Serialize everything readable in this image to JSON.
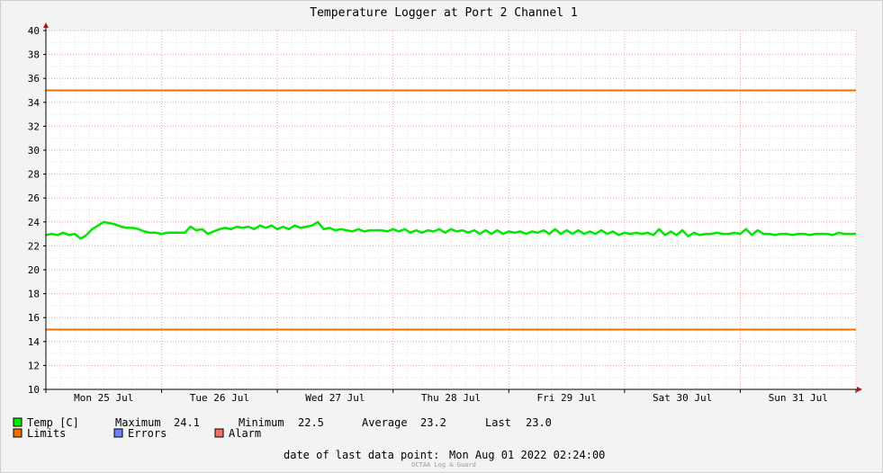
{
  "chart_data": {
    "type": "line",
    "title": "Temperature Logger at Port 2 Channel 1",
    "ylim": [
      10,
      40
    ],
    "y_ticks": [
      10,
      12,
      14,
      16,
      18,
      20,
      22,
      24,
      26,
      28,
      30,
      32,
      34,
      36,
      38,
      40
    ],
    "x_range_days": [
      0,
      7
    ],
    "x_labels": [
      {
        "day": 0.5,
        "label": "Mon 25 Jul"
      },
      {
        "day": 1.5,
        "label": "Tue 26 Jul"
      },
      {
        "day": 2.5,
        "label": "Wed 27 Jul"
      },
      {
        "day": 3.5,
        "label": "Thu 28 Jul"
      },
      {
        "day": 4.5,
        "label": "Fri 29 Jul"
      },
      {
        "day": 5.5,
        "label": "Sat 30 Jul"
      },
      {
        "day": 6.5,
        "label": "Sun 31 Jul"
      }
    ],
    "grid": true,
    "limits": [
      35,
      15
    ],
    "series": [
      {
        "name": "Temp [C]",
        "color": "#00e800",
        "x": [
          0.0,
          0.05,
          0.1,
          0.15,
          0.2,
          0.25,
          0.3,
          0.35,
          0.4,
          0.45,
          0.5,
          0.55,
          0.6,
          0.65,
          0.7,
          0.75,
          0.8,
          0.85,
          0.9,
          0.95,
          1.0,
          1.05,
          1.1,
          1.15,
          1.2,
          1.25,
          1.3,
          1.35,
          1.4,
          1.45,
          1.5,
          1.55,
          1.6,
          1.65,
          1.7,
          1.75,
          1.8,
          1.85,
          1.9,
          1.95,
          2.0,
          2.05,
          2.1,
          2.15,
          2.2,
          2.25,
          2.3,
          2.35,
          2.4,
          2.45,
          2.5,
          2.55,
          2.6,
          2.65,
          2.7,
          2.75,
          2.8,
          2.85,
          2.9,
          2.95,
          3.0,
          3.05,
          3.1,
          3.15,
          3.2,
          3.25,
          3.3,
          3.35,
          3.4,
          3.45,
          3.5,
          3.55,
          3.6,
          3.65,
          3.7,
          3.75,
          3.8,
          3.85,
          3.9,
          3.95,
          4.0,
          4.05,
          4.1,
          4.15,
          4.2,
          4.25,
          4.3,
          4.35,
          4.4,
          4.45,
          4.5,
          4.55,
          4.6,
          4.65,
          4.7,
          4.75,
          4.8,
          4.85,
          4.9,
          4.95,
          5.0,
          5.05,
          5.1,
          5.15,
          5.2,
          5.25,
          5.3,
          5.35,
          5.4,
          5.45,
          5.5,
          5.55,
          5.6,
          5.65,
          5.7,
          5.75,
          5.8,
          5.85,
          5.9,
          5.95,
          6.0,
          6.05,
          6.1,
          6.15,
          6.2,
          6.25,
          6.3,
          6.35,
          6.4,
          6.45,
          6.5,
          6.55,
          6.6,
          6.65,
          6.7,
          6.75,
          6.8,
          6.85,
          6.9,
          6.95,
          7.0
        ],
        "values": [
          22.9,
          23.0,
          22.9,
          23.1,
          22.9,
          23.0,
          22.6,
          22.9,
          23.4,
          23.7,
          24.0,
          23.9,
          23.8,
          23.6,
          23.5,
          23.5,
          23.4,
          23.2,
          23.1,
          23.1,
          23.0,
          23.1,
          23.1,
          23.1,
          23.1,
          23.6,
          23.3,
          23.4,
          23.0,
          23.2,
          23.4,
          23.5,
          23.4,
          23.6,
          23.5,
          23.6,
          23.4,
          23.7,
          23.5,
          23.7,
          23.4,
          23.6,
          23.4,
          23.7,
          23.5,
          23.6,
          23.7,
          24.0,
          23.4,
          23.5,
          23.3,
          23.4,
          23.3,
          23.2,
          23.4,
          23.2,
          23.3,
          23.3,
          23.3,
          23.2,
          23.4,
          23.2,
          23.4,
          23.1,
          23.3,
          23.1,
          23.3,
          23.2,
          23.4,
          23.1,
          23.4,
          23.2,
          23.3,
          23.1,
          23.3,
          23.0,
          23.3,
          23.0,
          23.3,
          23.0,
          23.2,
          23.1,
          23.2,
          23.0,
          23.2,
          23.1,
          23.3,
          23.0,
          23.4,
          23.0,
          23.3,
          23.0,
          23.3,
          23.0,
          23.2,
          23.0,
          23.3,
          23.0,
          23.2,
          22.9,
          23.1,
          23.0,
          23.1,
          23.0,
          23.1,
          22.9,
          23.4,
          22.9,
          23.2,
          22.9,
          23.3,
          22.8,
          23.1,
          22.9,
          23.0,
          23.0,
          23.1,
          23.0,
          23.0,
          23.1,
          23.0,
          23.4,
          22.9,
          23.3,
          23.0,
          23.0,
          22.9,
          23.0,
          23.0,
          22.9,
          23.0,
          23.0,
          22.9,
          23.0,
          23.0,
          23.0,
          22.9,
          23.1,
          23.0,
          23.0,
          23.0
        ]
      }
    ]
  },
  "legend": {
    "temp_label": "Temp [C]",
    "max_label": "Maximum",
    "max_value": "24.1",
    "min_label": "Minimum",
    "min_value": "22.5",
    "avg_label": "Average",
    "avg_value": "23.2",
    "last_label": "Last",
    "last_value": "23.0",
    "limits_label": "Limits",
    "errors_label": "Errors",
    "alarm_label": "Alarm",
    "colors": {
      "temp": "#00e800",
      "limits": "#ee7000",
      "errors": "#7080f8",
      "alarm": "#f07070"
    }
  },
  "footer": {
    "date_label": "date of last data point:",
    "date_value": "Mon Aug 01 2022 02:24:00",
    "brand": "OCTAA Log & Guard"
  }
}
